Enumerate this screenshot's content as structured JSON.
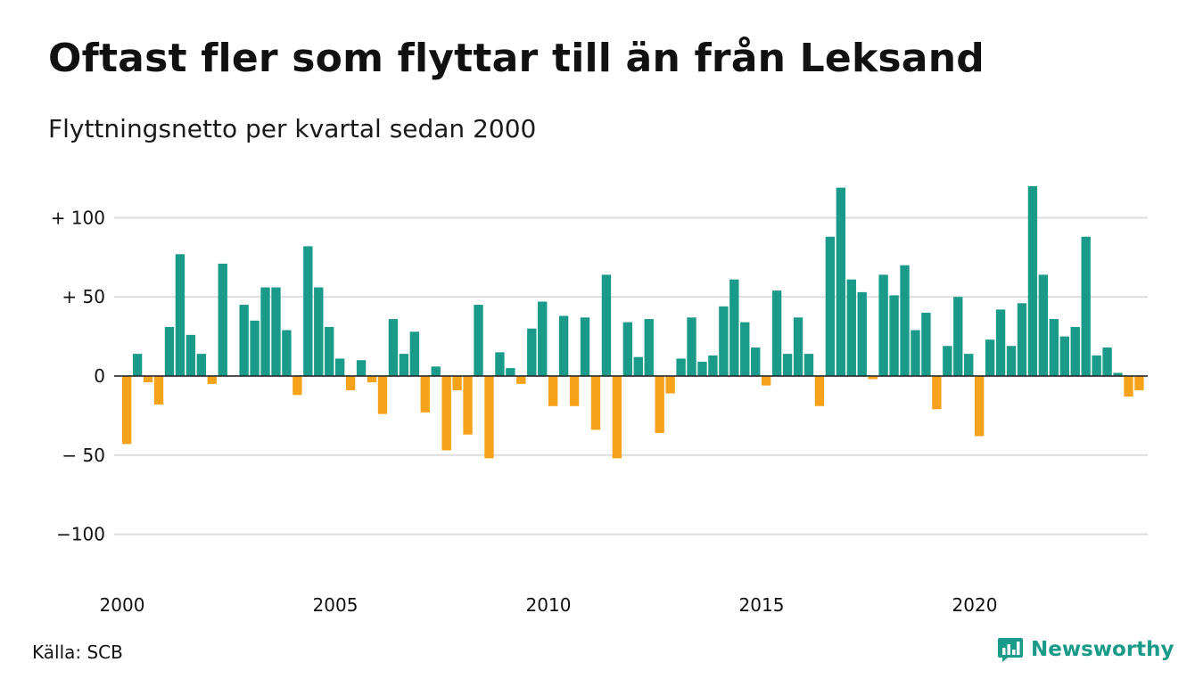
{
  "title": "Oftast fler som flyttar till än från Leksand",
  "subtitle": "Flyttningsnetto per kvartal sedan 2000",
  "source": "Källa: SCB",
  "brand": {
    "name": "Newsworthy",
    "icon": "bar-chart-speech-bubble-icon"
  },
  "colors": {
    "positive": "#1a9a88",
    "negative": "#f7a21b",
    "grid": "#dddddd",
    "zero_line": "#222222"
  },
  "chart_data": {
    "type": "bar",
    "title": "Oftast fler som flyttar till än från Leksand",
    "subtitle": "Flyttningsnetto per kvartal sedan 2000",
    "start_year": 2000,
    "periods_per_year": 4,
    "ylim": [
      -125,
      125
    ],
    "y_ticks": [
      {
        "value": 100,
        "label": "+ 100"
      },
      {
        "value": 50,
        "label": "+  50"
      },
      {
        "value": 0,
        "label": "0"
      },
      {
        "value": -50,
        "label": "− 50"
      },
      {
        "value": -100,
        "label": "−100"
      }
    ],
    "x_ticks": [
      "2000",
      "2005",
      "2010",
      "2015",
      "2020"
    ],
    "grid": true,
    "legend": "none",
    "values": [
      -43,
      14,
      -4,
      -18,
      31,
      77,
      26,
      14,
      -5,
      71,
      0,
      45,
      35,
      56,
      56,
      29,
      -12,
      82,
      56,
      31,
      11,
      -9,
      10,
      -4,
      -24,
      36,
      14,
      28,
      -23,
      6,
      -47,
      -9,
      -37,
      45,
      -52,
      15,
      5,
      -5,
      30,
      47,
      -19,
      38,
      -19,
      37,
      -34,
      64,
      -52,
      34,
      12,
      36,
      -36,
      -11,
      11,
      37,
      9,
      13,
      44,
      61,
      34,
      18,
      -6,
      54,
      14,
      37,
      14,
      -19,
      88,
      119,
      61,
      53,
      -2,
      64,
      51,
      70,
      29,
      40,
      -21,
      19,
      50,
      14,
      -38,
      23,
      42,
      19,
      46,
      120,
      64,
      36,
      25,
      31,
      88,
      13,
      18,
      2,
      -13,
      -9
    ]
  }
}
